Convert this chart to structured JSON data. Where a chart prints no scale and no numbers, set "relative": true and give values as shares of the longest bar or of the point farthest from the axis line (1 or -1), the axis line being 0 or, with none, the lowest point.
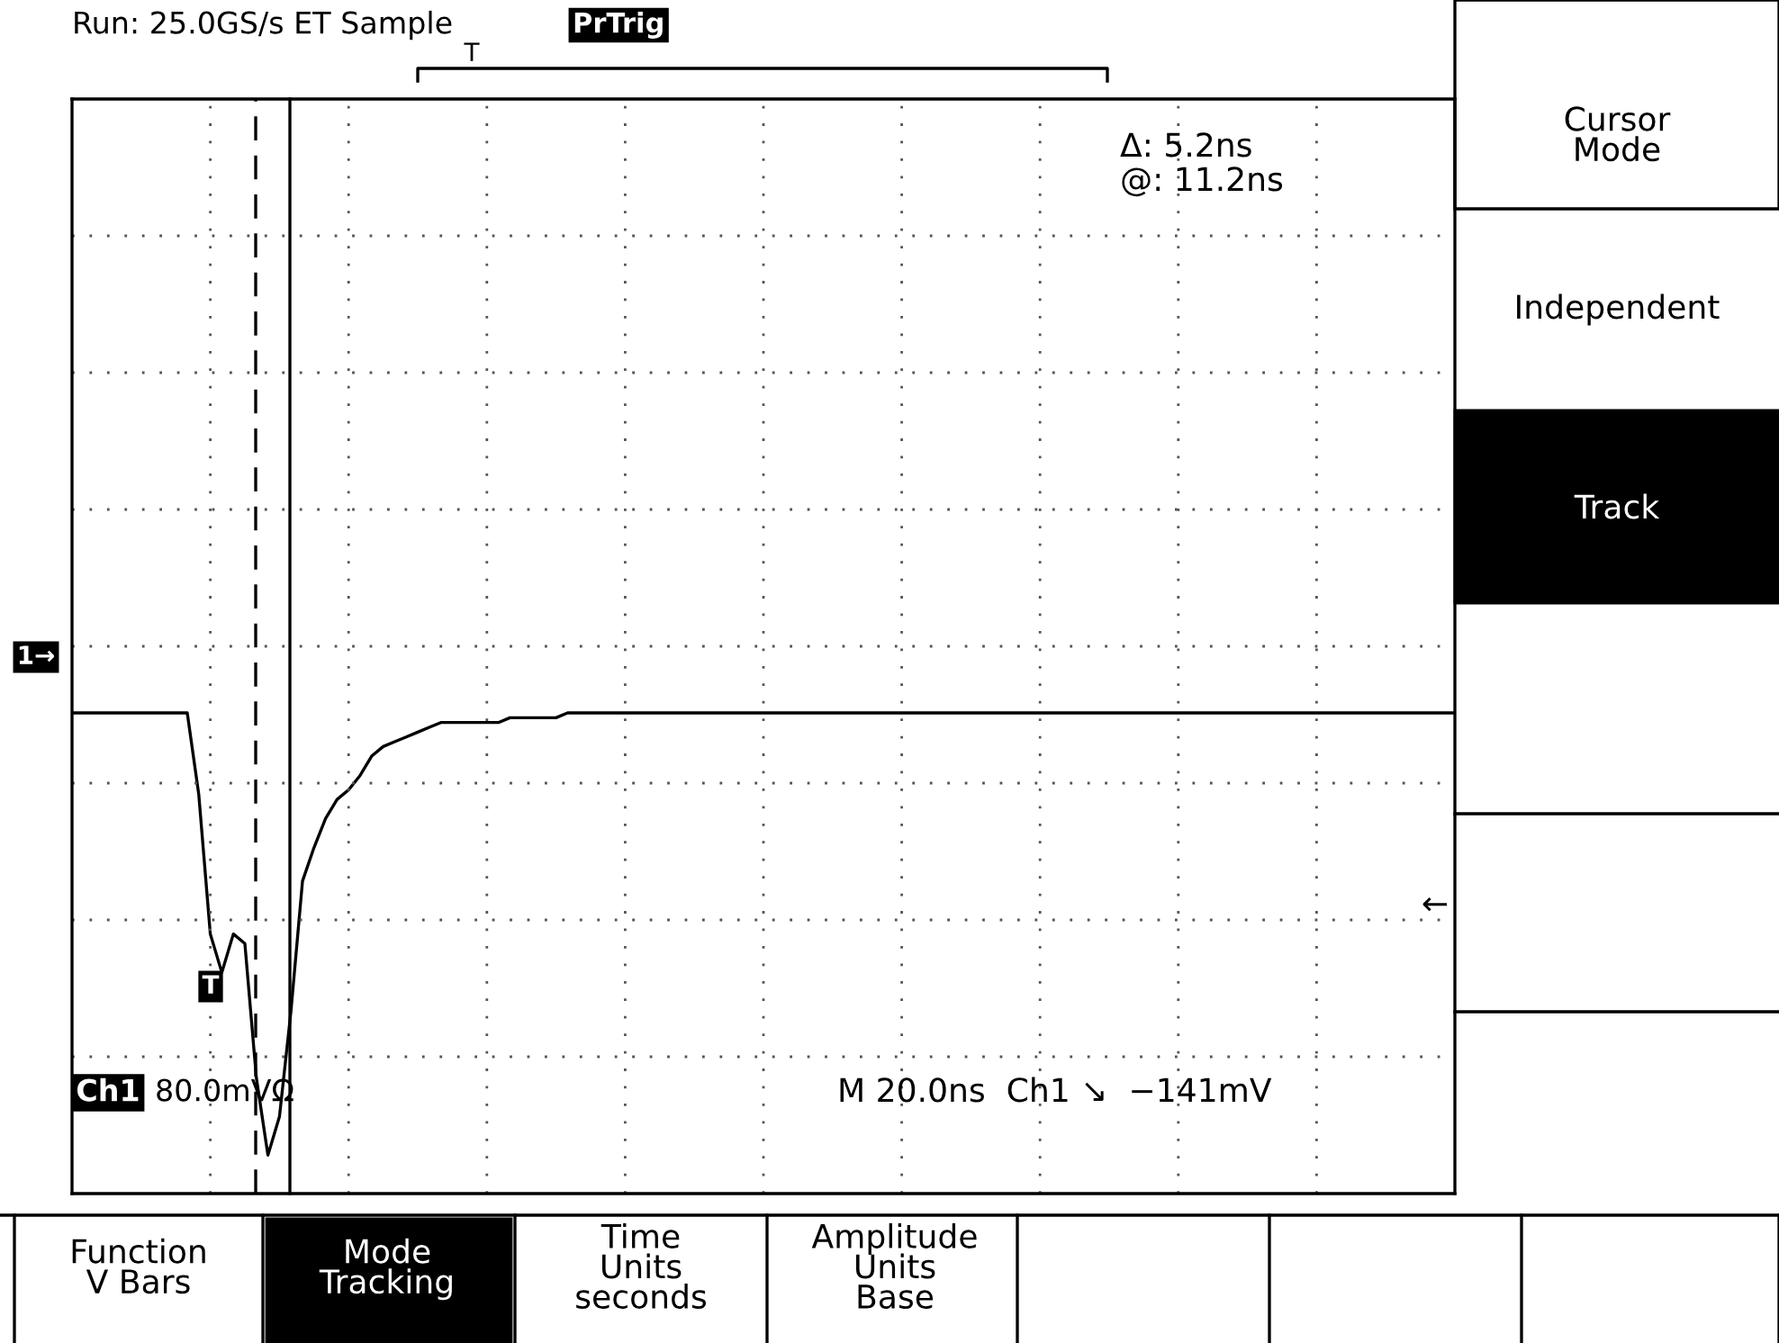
{
  "chart_data": {
    "type": "line",
    "title": "Run: 25.0GS/s ET Sample",
    "subtitle": "PrTrig",
    "relative": true,
    "categories": [
      null,
      null,
      null,
      null,
      null,
      null,
      null,
      null,
      null,
      null,
      null,
      null,
      null,
      null,
      null,
      null,
      null,
      null,
      null,
      null,
      null,
      null,
      null,
      null,
      null,
      null,
      null,
      null,
      null,
      null,
      null,
      null,
      null,
      null,
      null,
      null,
      null,
      null,
      null,
      null,
      null,
      null,
      null,
      null,
      null,
      null,
      null,
      null,
      null,
      null,
      null,
      null,
      null,
      null,
      null,
      null,
      null,
      null,
      null,
      null,
      null,
      null,
      null,
      null,
      null,
      null,
      null,
      null,
      null,
      null,
      null,
      null,
      null,
      null,
      null,
      null,
      null,
      null,
      null,
      null,
      null,
      null,
      null,
      null,
      null,
      null,
      null,
      null,
      null,
      null,
      null,
      null,
      null,
      null,
      null,
      null,
      null,
      null,
      null,
      null,
      null,
      null,
      null,
      null,
      null,
      null,
      null,
      null,
      null,
      null,
      null,
      null,
      null,
      null,
      null,
      null,
      null,
      null,
      null,
      null,
      null
    ],
    "grid": true,
    "marker": "none",
    "line_style": "solid",
    "series": [
      {
        "color": "#000000",
        "values": [
          1,
          1,
          1,
          1,
          1,
          1,
          1,
          1,
          1,
          1,
          1,
          0.83,
          0.54,
          0.46,
          0.54,
          0.52,
          0.24,
          0.08,
          0.16,
          0.38,
          0.65,
          0.72,
          0.78,
          0.82,
          0.84,
          0.87,
          0.91,
          0.93,
          0.94,
          0.95,
          0.96,
          0.97,
          0.98,
          0.98,
          0.98,
          0.98,
          0.98,
          0.98,
          0.99,
          0.99,
          0.99,
          0.99,
          0.99,
          1,
          1,
          1,
          1,
          1,
          1,
          1,
          1,
          1,
          1,
          1,
          1,
          1,
          1,
          1,
          1,
          1,
          1,
          1,
          1,
          1,
          1,
          1,
          1,
          1,
          1,
          1,
          1,
          1,
          1,
          1,
          1,
          1,
          1,
          1,
          1,
          1,
          1,
          1,
          1,
          1,
          1,
          1,
          1,
          1,
          1,
          1,
          1,
          1,
          1,
          1,
          1,
          1,
          1,
          1,
          1,
          1,
          1,
          1,
          1,
          1,
          1,
          1,
          1,
          1,
          1,
          1,
          1,
          1,
          1,
          1,
          1,
          1,
          1,
          1,
          1,
          1,
          1
        ]
      }
    ],
    "annotations": [
      "Δ: 5.2ns",
      "@: 11.2ns",
      "Ch1",
      "80.0mVΩ",
      "M 20.0ns  Ch1 ↘  −141mV",
      "Cursor\nMode",
      "Independent",
      "Track",
      "Function\nV Bars",
      "Mode\nTracking",
      "Time\nUnits\nseconds",
      "Amplitude\nUnits\nBase",
      "1→",
      "T",
      "T",
      "←"
    ]
  }
}
